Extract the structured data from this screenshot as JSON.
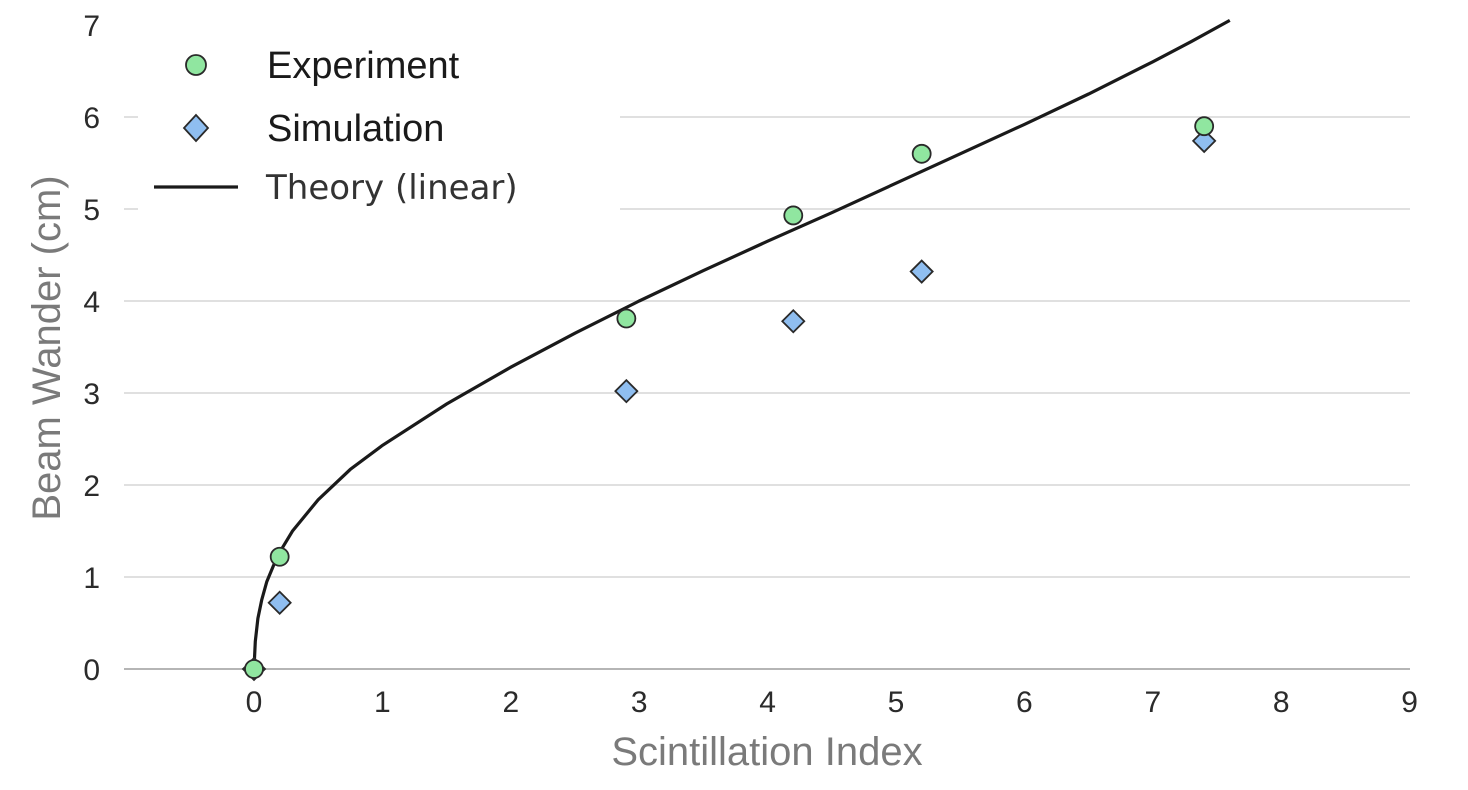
{
  "chart_data": {
    "type": "scatter",
    "xlabel": "Scintillation Index",
    "ylabel": "Beam Wander (cm)",
    "xlim": [
      -1,
      9
    ],
    "ylim": [
      0,
      7
    ],
    "x_ticks": [
      0,
      1,
      2,
      3,
      4,
      5,
      6,
      7,
      8,
      9
    ],
    "y_ticks": [
      0,
      1,
      2,
      3,
      4,
      5,
      6,
      7
    ],
    "grid": "horizontal",
    "legend_position": "top-left",
    "series": [
      {
        "name": "Experiment",
        "marker": "circle",
        "color": "#90e6a0",
        "x": [
          0,
          0.2,
          2.9,
          4.2,
          5.2,
          7.4
        ],
        "y": [
          0,
          1.22,
          3.81,
          4.93,
          5.6,
          5.9
        ]
      },
      {
        "name": "Simulation",
        "marker": "diamond",
        "color": "#8fbef0",
        "x": [
          0,
          0.2,
          2.9,
          4.2,
          5.2,
          7.4
        ],
        "y": [
          0,
          0.72,
          3.02,
          3.78,
          4.32,
          5.74
        ]
      },
      {
        "name": "Theory (linear)",
        "marker": "line",
        "color": "#1a1a1a",
        "x": [
          0,
          0.01,
          0.03,
          0.06,
          0.1,
          0.15,
          0.2,
          0.3,
          0.5,
          0.75,
          1,
          1.5,
          2,
          2.5,
          3,
          3.5,
          4,
          4.5,
          5,
          5.5,
          6,
          6.5,
          7,
          7.3,
          7.6
        ],
        "y": [
          0,
          0.3,
          0.55,
          0.75,
          0.95,
          1.12,
          1.27,
          1.5,
          1.84,
          2.17,
          2.43,
          2.88,
          3.28,
          3.65,
          4.0,
          4.33,
          4.65,
          4.96,
          5.28,
          5.6,
          5.92,
          6.25,
          6.6,
          6.82,
          7.05
        ]
      }
    ]
  }
}
